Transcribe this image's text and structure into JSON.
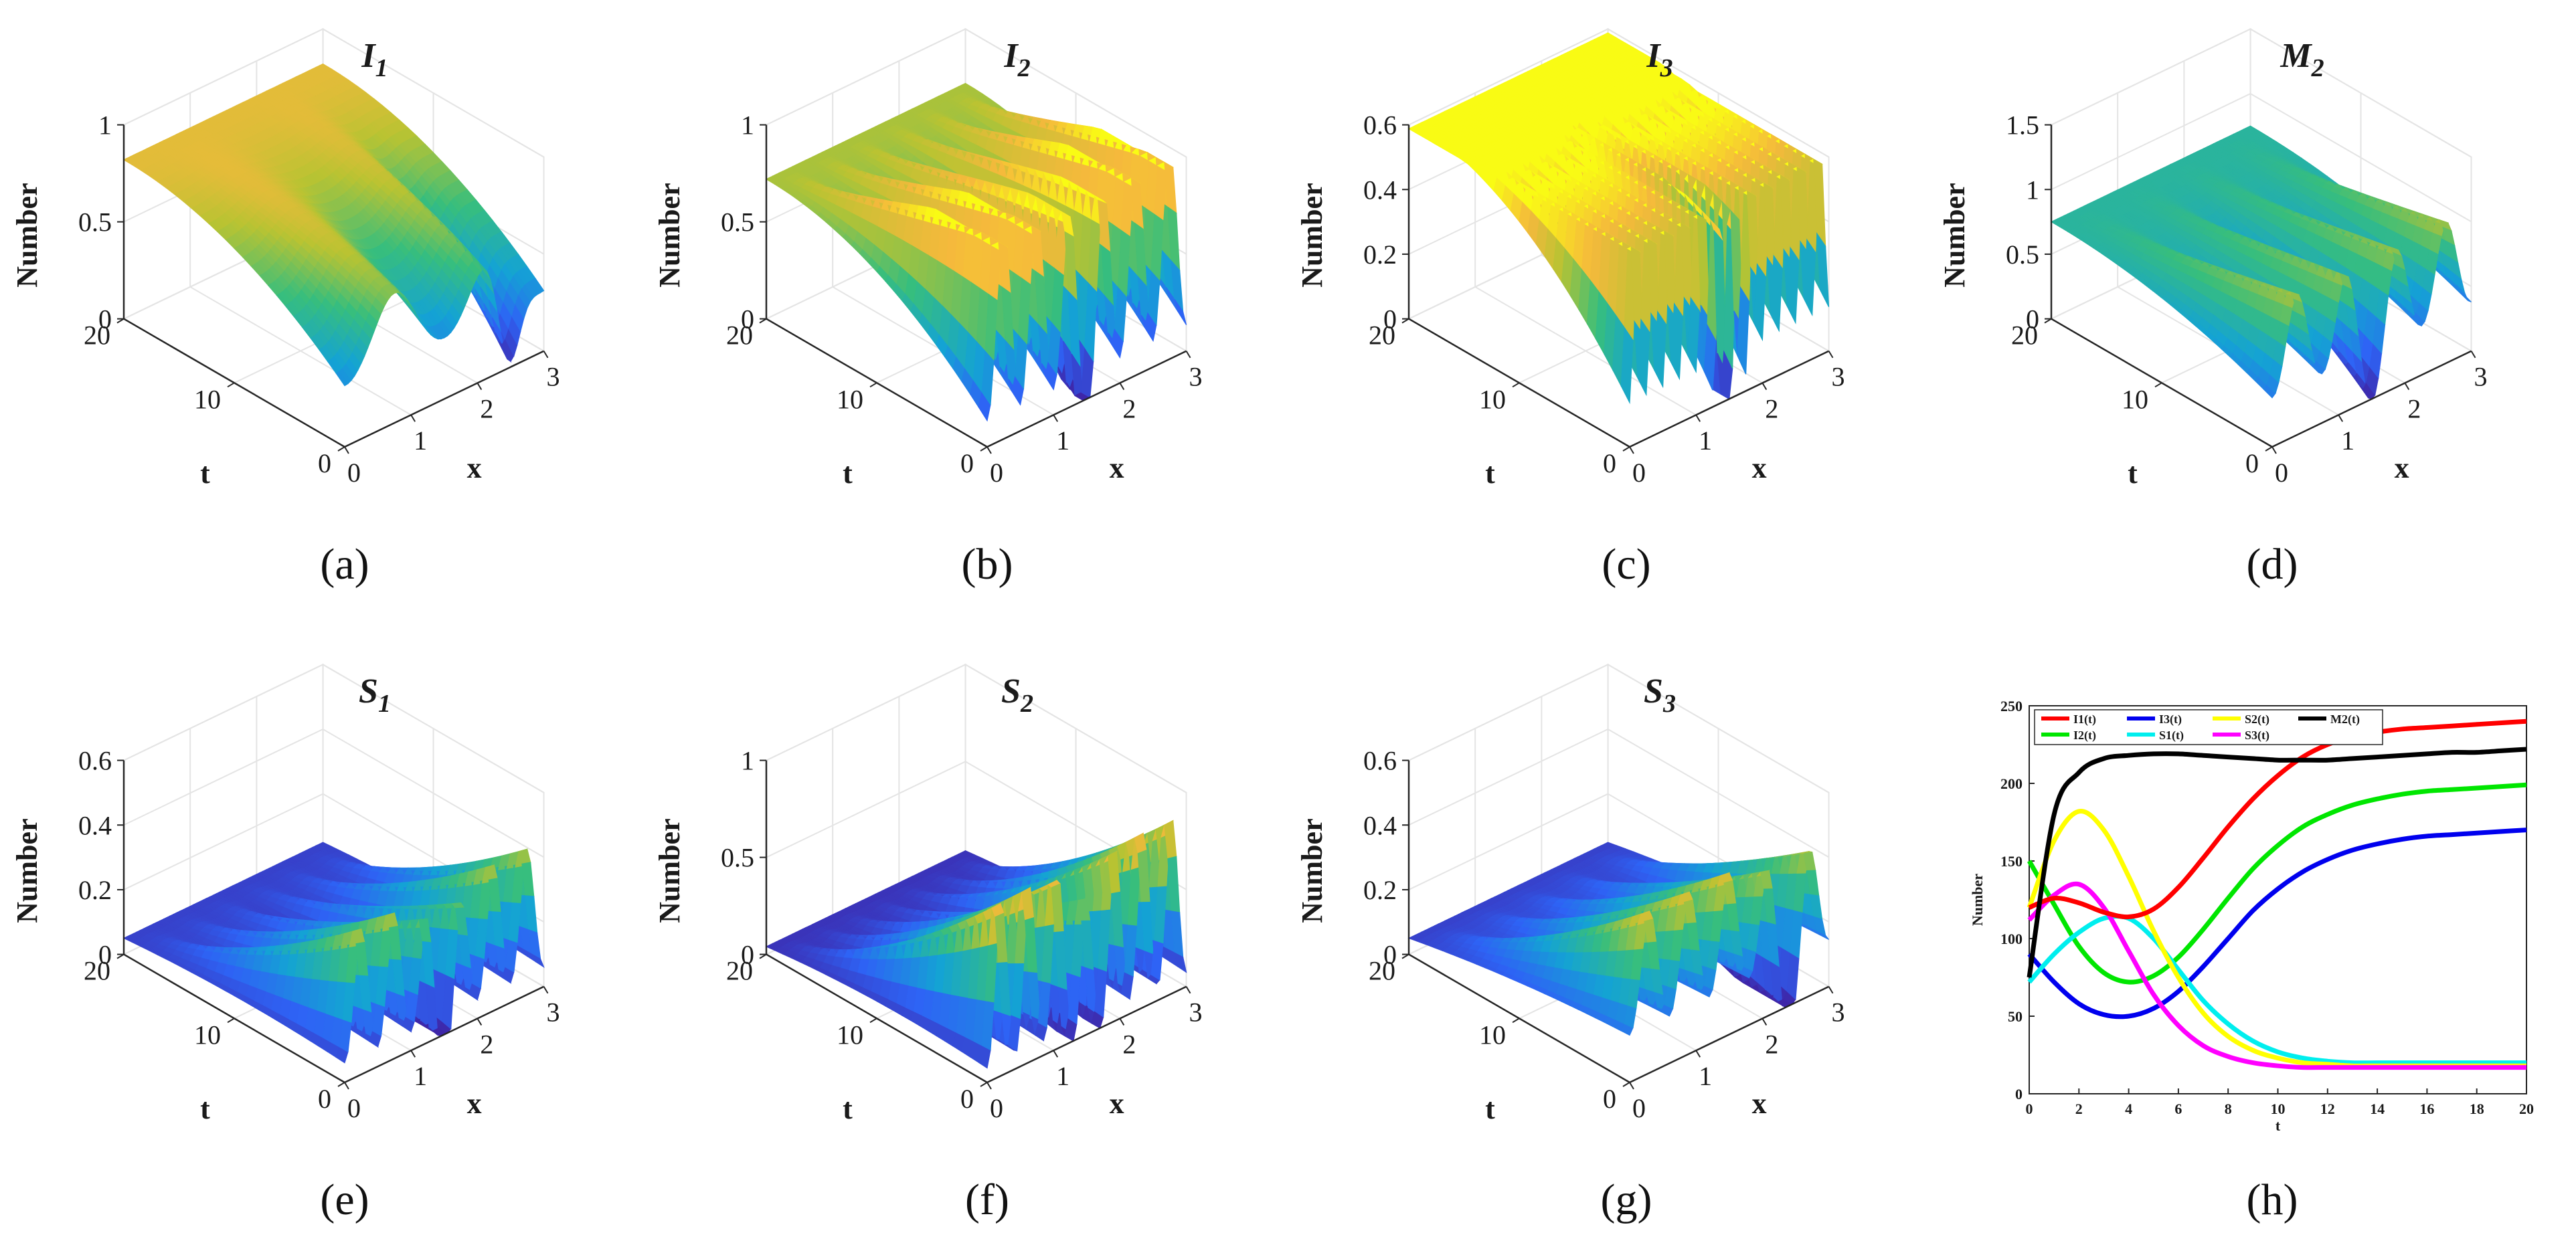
{
  "figure": {
    "panel_labels": [
      "(a)",
      "(b)",
      "(c)",
      "(d)",
      "(e)",
      "(f)",
      "(g)",
      "(h)"
    ]
  },
  "chart_data": [
    {
      "id": "a",
      "type": "surface",
      "title_base": "I",
      "title_sub": "1",
      "xlabel": "x",
      "ylabel": "t",
      "zlabel": "Number",
      "x_ticks": [
        "0",
        "1",
        "2",
        "3"
      ],
      "t_ticks": [
        "0",
        "10",
        "20"
      ],
      "z_ticks": [
        "0",
        "0.5",
        "1"
      ],
      "zlim": [
        0,
        1
      ],
      "surface": {
        "base": 0.82,
        "decay": 0.55,
        "floor": 0.2,
        "n_spikes": 2,
        "spike_amp": 0.3,
        "dip_depth": 0.55,
        "dip_center": 0.82
      }
    },
    {
      "id": "b",
      "type": "surface",
      "title_base": "I",
      "title_sub": "2",
      "xlabel": "x",
      "ylabel": "t",
      "zlabel": "Number",
      "x_ticks": [
        "0",
        "1",
        "2",
        "3"
      ],
      "t_ticks": [
        "0",
        "10",
        "20"
      ],
      "z_ticks": [
        "0",
        "0.5",
        "1"
      ],
      "zlim": [
        0,
        1
      ],
      "surface": {
        "base": 0.72,
        "decay": 0.6,
        "floor": 0.15,
        "n_spikes": 6,
        "spike_amp": 0.85,
        "dip_depth": 0.3,
        "dip_center": 0.5
      }
    },
    {
      "id": "c",
      "type": "surface",
      "title_base": "I",
      "title_sub": "3",
      "xlabel": "x",
      "ylabel": "t",
      "zlabel": "Number",
      "x_ticks": [
        "0",
        "1",
        "2",
        "3"
      ],
      "t_ticks": [
        "0",
        "10",
        "20"
      ],
      "z_ticks": [
        "0",
        "0.2",
        "0.4",
        "0.6"
      ],
      "zlim": [
        0,
        0.6
      ],
      "surface": {
        "base": 0.62,
        "decay": 0.62,
        "floor": 0.12,
        "n_spikes": 12,
        "spike_amp": 0.55,
        "dip_depth": 0.25,
        "dip_center": 0.5
      }
    },
    {
      "id": "d",
      "type": "surface",
      "title_base": "M",
      "title_sub": "2",
      "xlabel": "x",
      "ylabel": "t",
      "zlabel": "Number",
      "x_ticks": [
        "0",
        "1",
        "2",
        "3"
      ],
      "t_ticks": [
        "0",
        "10",
        "20"
      ],
      "z_ticks": [
        "0",
        "0.5",
        "1",
        "1.5"
      ],
      "zlim": [
        0,
        1.5
      ],
      "surface": {
        "base": 0.75,
        "decay": 0.35,
        "floor": 0.45,
        "n_spikes": 4,
        "spike_amp": 0.6,
        "dip_depth": 0.4,
        "dip_center": 0.5
      }
    },
    {
      "id": "e",
      "type": "surface",
      "title_base": "S",
      "title_sub": "1",
      "xlabel": "x",
      "ylabel": "t",
      "zlabel": "Number",
      "x_ticks": [
        "0",
        "1",
        "2",
        "3"
      ],
      "t_ticks": [
        "0",
        "10",
        "20"
      ],
      "z_ticks": [
        "0",
        "0.2",
        "0.4",
        "0.6"
      ],
      "zlim": [
        0,
        0.6
      ],
      "surface": {
        "base": 0.05,
        "decay": -1.5,
        "floor": 0.12,
        "n_spikes": 6,
        "spike_amp": 0.33,
        "dip_depth": 0.2,
        "dip_center": 0.5
      }
    },
    {
      "id": "f",
      "type": "surface",
      "title_base": "S",
      "title_sub": "2",
      "xlabel": "x",
      "ylabel": "t",
      "zlabel": "Number",
      "x_ticks": [
        "0",
        "1",
        "2",
        "3"
      ],
      "t_ticks": [
        "0",
        "10",
        "20"
      ],
      "z_ticks": [
        "0",
        "0.5",
        "1"
      ],
      "zlim": [
        0,
        1
      ],
      "surface": {
        "base": 0.04,
        "decay": -1.5,
        "floor": 0.2,
        "n_spikes": 7,
        "spike_amp": 0.7,
        "dip_depth": 0.2,
        "dip_center": 0.5
      }
    },
    {
      "id": "g",
      "type": "surface",
      "title_base": "S",
      "title_sub": "3",
      "xlabel": "x",
      "ylabel": "t",
      "zlabel": "Number",
      "x_ticks": [
        "0",
        "1",
        "2",
        "3"
      ],
      "t_ticks": [
        "0",
        "10",
        "20"
      ],
      "z_ticks": [
        "0",
        "0.2",
        "0.4",
        "0.6"
      ],
      "zlim": [
        0,
        0.6
      ],
      "surface": {
        "base": 0.05,
        "decay": -1.5,
        "floor": 0.2,
        "n_spikes": 5,
        "spike_amp": 0.3,
        "dip_depth": 0.25,
        "dip_center": 0.8
      }
    },
    {
      "id": "h",
      "type": "line",
      "xlabel": "t",
      "ylabel": "Number",
      "xlim": [
        0,
        20
      ],
      "ylim": [
        0,
        250
      ],
      "x_ticks": [
        0,
        2,
        4,
        6,
        8,
        10,
        12,
        14,
        16,
        18,
        20
      ],
      "y_ticks": [
        0,
        50,
        100,
        150,
        200,
        250
      ],
      "legend_position": "top-left",
      "x": [
        0,
        1,
        2,
        3,
        4,
        5,
        6,
        7,
        8,
        9,
        10,
        11,
        12,
        13,
        14,
        15,
        16,
        17,
        18,
        19,
        20
      ],
      "series": [
        {
          "name": "I1(t)",
          "color": "#ff0000",
          "values": [
            120,
            126,
            123,
            117,
            114,
            119,
            133,
            152,
            172,
            190,
            205,
            217,
            225,
            230,
            233,
            235,
            236,
            237,
            238,
            239,
            240
          ]
        },
        {
          "name": "I2(t)",
          "color": "#00e600",
          "values": [
            150,
            122,
            95,
            78,
            72,
            76,
            88,
            106,
            126,
            145,
            160,
            172,
            180,
            186,
            190,
            193,
            195,
            196,
            197,
            198,
            199
          ]
        },
        {
          "name": "I3(t)",
          "color": "#0000ee",
          "values": [
            90,
            72,
            58,
            51,
            50,
            55,
            66,
            82,
            100,
            118,
            132,
            143,
            151,
            157,
            161,
            164,
            166,
            167,
            168,
            169,
            170
          ]
        },
        {
          "name": "S1(t)",
          "color": "#00eeee",
          "values": [
            72,
            90,
            104,
            113,
            113,
            100,
            80,
            60,
            45,
            34,
            27,
            23,
            21,
            20,
            20,
            20,
            20,
            20,
            20,
            20,
            20
          ]
        },
        {
          "name": "S2(t)",
          "color": "#ffff00",
          "values": [
            120,
            163,
            182,
            170,
            140,
            105,
            75,
            52,
            37,
            28,
            23,
            20,
            19,
            18,
            18,
            18,
            18,
            18,
            18,
            18,
            18
          ]
        },
        {
          "name": "S3(t)",
          "color": "#ff00ff",
          "values": [
            112,
            128,
            135,
            120,
            92,
            64,
            44,
            31,
            24,
            20,
            18,
            17,
            17,
            17,
            17,
            17,
            17,
            17,
            17,
            17,
            17
          ]
        },
        {
          "name": "M2(t)",
          "color": "#000000",
          "values": [
            75,
            180,
            207,
            216,
            218,
            219,
            219,
            218,
            217,
            216,
            215,
            215,
            215,
            216,
            217,
            218,
            219,
            220,
            220,
            221,
            222
          ]
        }
      ]
    }
  ]
}
